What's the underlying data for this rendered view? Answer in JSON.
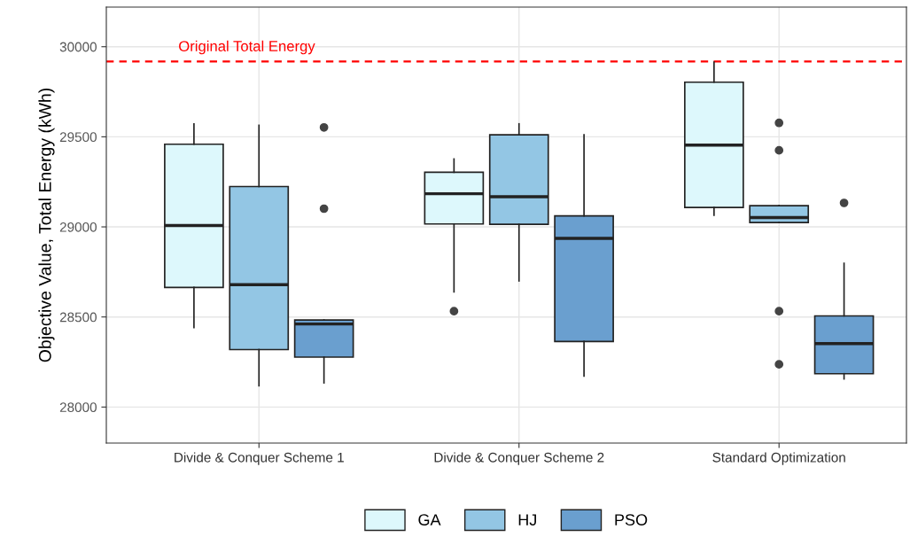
{
  "chart_data": {
    "type": "box",
    "ylabel": "Objective Value, Total Energy (kWh)",
    "categories": [
      "Divide & Conquer Scheme 1",
      "Divide & Conquer Scheme 2",
      "Standard Optimization"
    ],
    "ylim": [
      27800,
      30220
    ],
    "yticks": [
      28000,
      28500,
      29000,
      29500,
      30000
    ],
    "grid": true,
    "legend": "bottom",
    "ref_lines": [
      {
        "axis": "y",
        "value": 29918,
        "label": "Original Total Energy",
        "color": "#ff0000",
        "line_style": "dashed"
      }
    ],
    "series": [
      {
        "name": "GA",
        "color": "#ddf8fc",
        "boxes": [
          {
            "low": 28441,
            "q1": 28664,
            "median": 29008,
            "q3": 29459,
            "high": 29572
          },
          {
            "low": 28639,
            "q1": 29016,
            "median": 29184,
            "q3": 29303,
            "high": 29377,
            "outliers": [
              28532
            ]
          },
          {
            "low": 29064,
            "q1": 29108,
            "median": 29454,
            "q3": 29803,
            "high": 29915
          }
        ]
      },
      {
        "name": "HJ",
        "color": "#93c6e4",
        "boxes": [
          {
            "low": 28118,
            "q1": 28319,
            "median": 28679,
            "q3": 29224,
            "high": 29564
          },
          {
            "low": 28700,
            "q1": 29014,
            "median": 29167,
            "q3": 29511,
            "high": 29572
          },
          {
            "low": 29024,
            "q1": 29024,
            "median": 29052,
            "q3": 29118,
            "high": 29118,
            "outliers": [
              29577,
              29425,
              28532,
              28237
            ]
          }
        ]
      },
      {
        "name": "PSO",
        "color": "#6a9fcf",
        "boxes": [
          {
            "low": 28134,
            "q1": 28277,
            "median": 28461,
            "q3": 28483,
            "high": 28483,
            "outliers": [
              29552,
              29101
            ]
          },
          {
            "low": 28172,
            "q1": 28364,
            "median": 28936,
            "q3": 29061,
            "high": 29511
          },
          {
            "low": 28156,
            "q1": 28185,
            "median": 28352,
            "q3": 28506,
            "high": 28798,
            "outliers": [
              29133
            ]
          }
        ]
      }
    ]
  }
}
